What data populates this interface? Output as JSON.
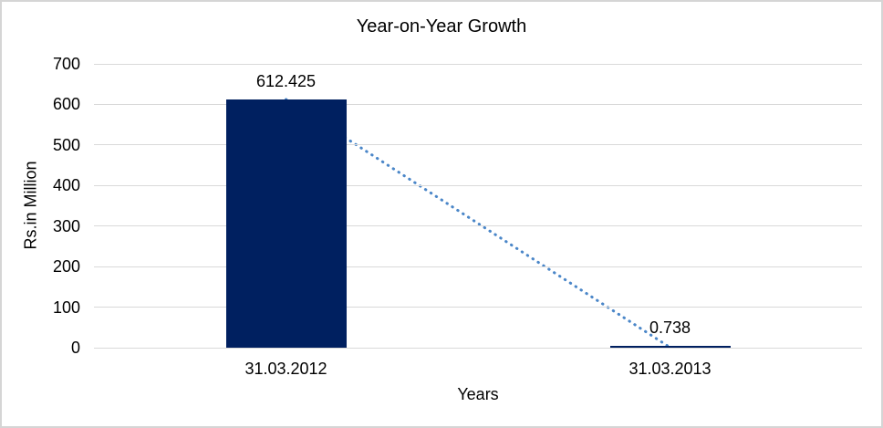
{
  "chart_data": {
    "type": "bar",
    "title": "Year-on-Year Growth",
    "xlabel": "Years",
    "ylabel": "Rs.in Million",
    "categories": [
      "31.03.2012",
      "31.03.2013"
    ],
    "values": [
      612.425,
      0.738
    ],
    "data_labels": [
      "612.425",
      "0.738"
    ],
    "ylim": [
      0,
      700
    ],
    "yticks": [
      0,
      100,
      200,
      300,
      400,
      500,
      600,
      700
    ],
    "grid": true,
    "legend_position": "none",
    "bar_color": "#002060",
    "gridline_color": "#d9d9d9",
    "trendline": {
      "style": "dotted",
      "color": "#4a86c8",
      "from_value": 612.425,
      "to_value": 0.738
    }
  }
}
